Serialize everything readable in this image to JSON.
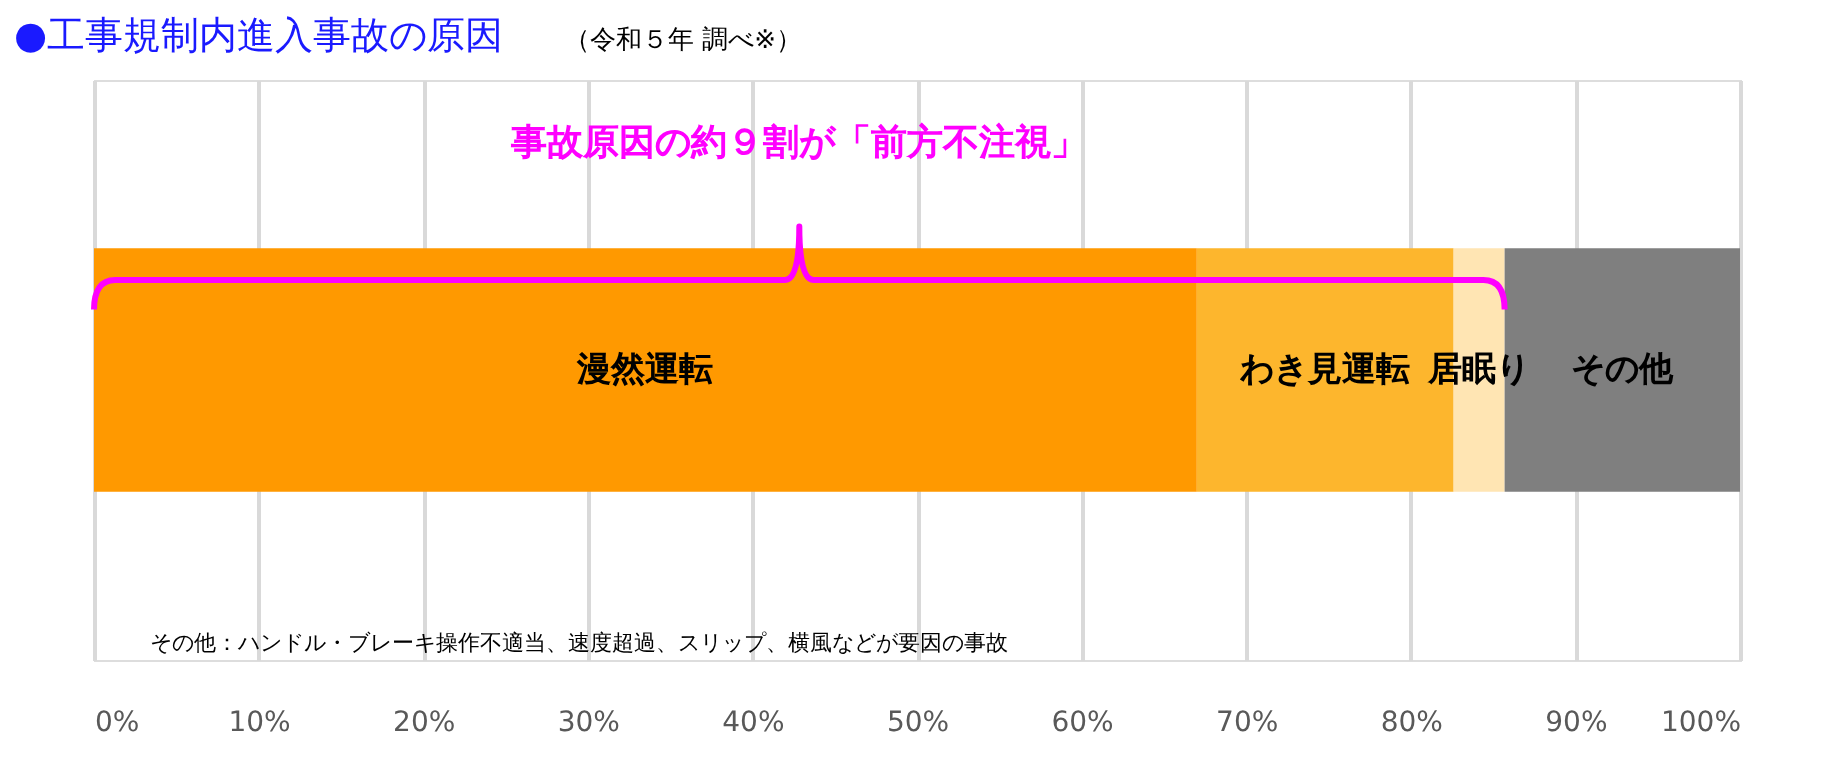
{
  "chart_data": {
    "type": "bar",
    "orientation": "horizontal",
    "stacked": true,
    "title": "●工事規制内進入事故の原因",
    "subtitle": "（令和５年 調べ※）",
    "categories": [
      null
    ],
    "series": [
      {
        "name": "漫然運転",
        "color": "#ff9900",
        "values": [
          67
        ]
      },
      {
        "name": "わき見運転",
        "color": "#fdb62d",
        "values": [
          15.6
        ]
      },
      {
        "name": "居眠り",
        "color": "#ffe5b3",
        "values": [
          3.1
        ]
      },
      {
        "name": "その他",
        "color": "#7f7f7f",
        "values": [
          14.3
        ]
      }
    ],
    "xlim": [
      0,
      100
    ],
    "xticks": [
      {
        "value": 0,
        "label": "0%"
      },
      {
        "value": 10,
        "label": "10%"
      },
      {
        "value": 20,
        "label": "20%"
      },
      {
        "value": 30,
        "label": "30%"
      },
      {
        "value": 40,
        "label": "40%"
      },
      {
        "value": 50,
        "label": "50%"
      },
      {
        "value": 60,
        "label": "60%"
      },
      {
        "value": 70,
        "label": "70%"
      },
      {
        "value": 80,
        "label": "80%"
      },
      {
        "value": 90,
        "label": "90%"
      },
      {
        "value": 100,
        "label": "100%"
      }
    ],
    "grid": "x",
    "legend": false,
    "tick_labels": "x",
    "annotations": [
      "事故原因の約９割が「前方不注視」",
      "その他：ハンドル・ブレーキ操作不適当、速度超過、スリップ、横風などが要因の事故"
    ]
  }
}
